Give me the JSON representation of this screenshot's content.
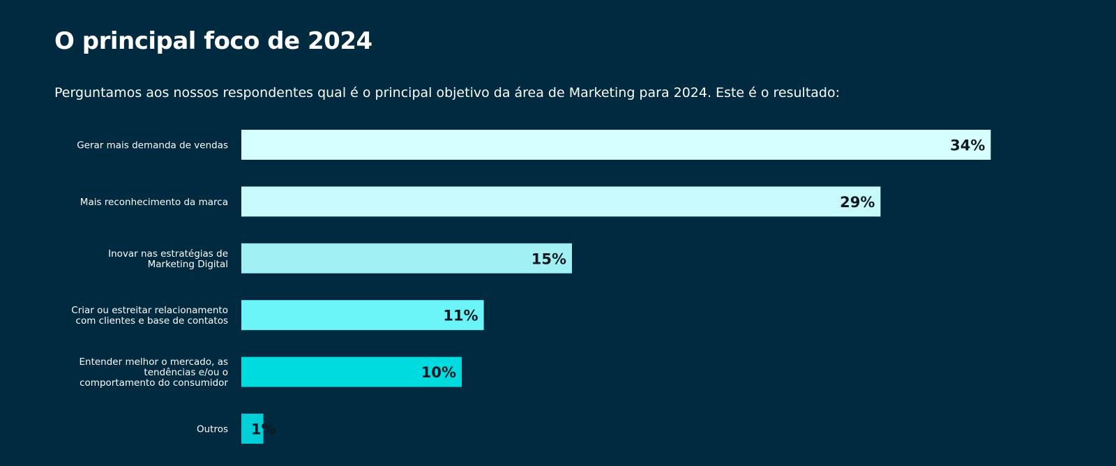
{
  "header": {
    "title": "O principal foco de 2024",
    "subtitle": "Perguntamos aos nossos respondentes qual é o principal objetivo da área de Marketing para 2024. Este é o resultado:"
  },
  "chart_data": {
    "type": "bar",
    "orientation": "horizontal",
    "categories": [
      [
        "Gerar mais demanda de vendas"
      ],
      [
        "Mais reconhecimento da marca"
      ],
      [
        "Inovar nas estratégias de",
        "Marketing Digital"
      ],
      [
        "Criar ou estreitar relacionamento",
        "com clientes e base de contatos"
      ],
      [
        "Entender melhor o mercado, as",
        "tendências e/ou o",
        "comportamento do consumidor"
      ],
      [
        "Outros"
      ]
    ],
    "values": [
      34,
      29,
      15,
      11,
      10,
      1
    ],
    "value_labels": [
      "34%",
      "29%",
      "15%",
      "11%",
      "10%",
      "1%"
    ],
    "value_unit": "%",
    "bar_colors": [
      "#d8ffff",
      "#c8fafb",
      "#a0f0f4",
      "#6cf5f8",
      "#00dbe0",
      "#00cfd8"
    ],
    "grid": false,
    "legend": false
  }
}
